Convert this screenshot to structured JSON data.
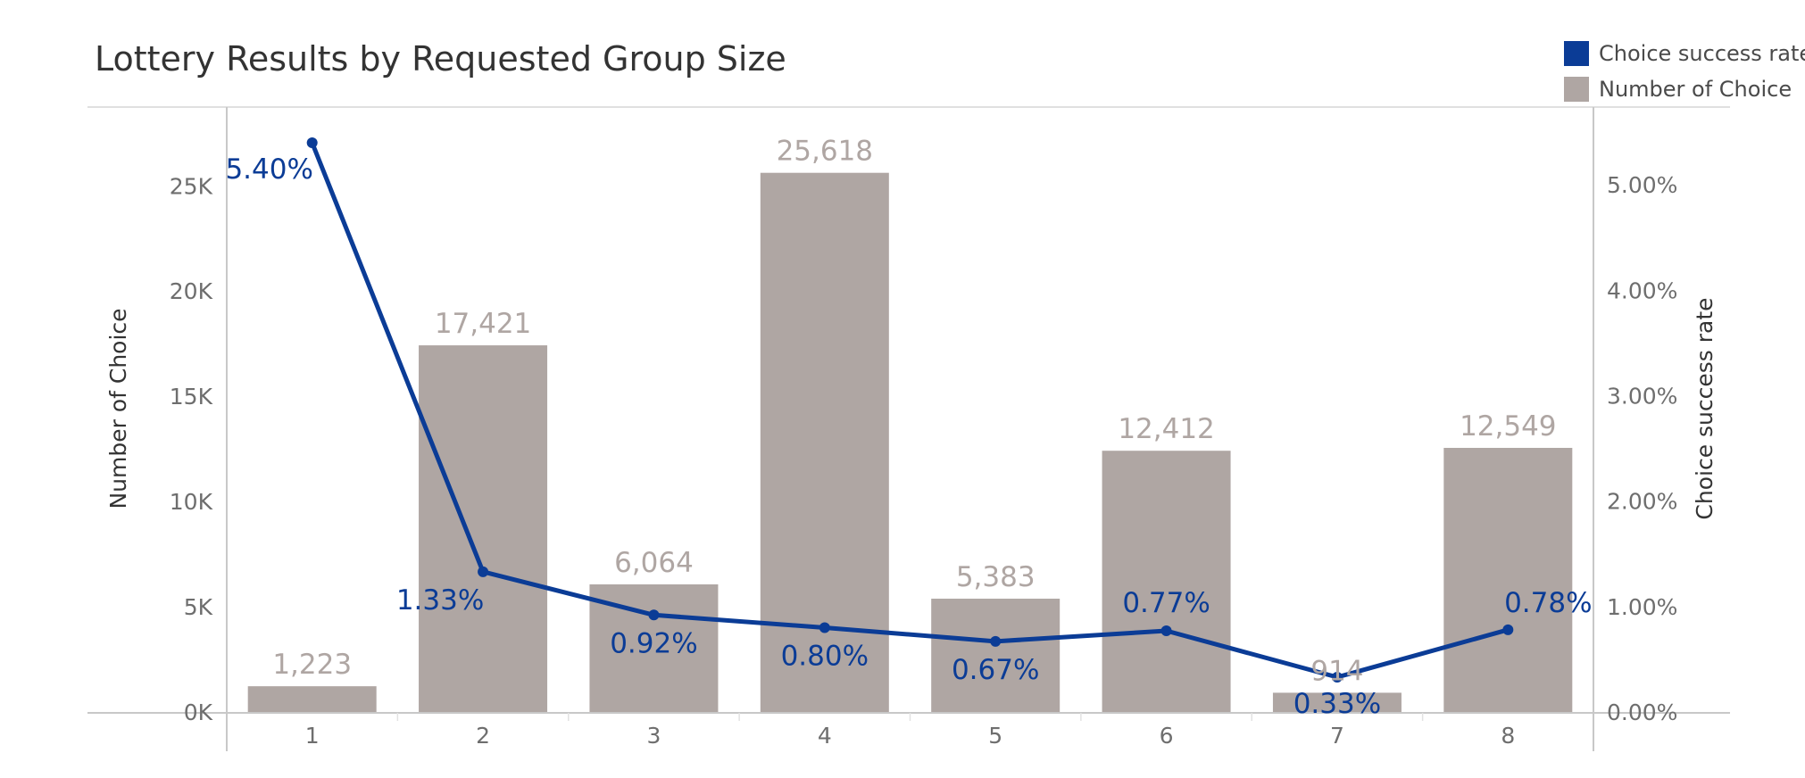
{
  "chart_data": {
    "type": "bar",
    "title": "Lottery Results by Requested Group Size",
    "categories": [
      "1",
      "2",
      "3",
      "4",
      "5",
      "6",
      "7",
      "8"
    ],
    "series": [
      {
        "name": "Number of Choice",
        "type": "bar",
        "axis": "left",
        "color": "#AFA6A3",
        "values": [
          1223,
          17421,
          6064,
          25618,
          5383,
          12412,
          914,
          12549
        ],
        "labels": [
          "1,223",
          "17,421",
          "6,064",
          "25,618",
          "5,383",
          "12,412",
          "914",
          "12,549"
        ]
      },
      {
        "name": "Choice success rate",
        "type": "line",
        "axis": "right",
        "color": "#0B3C96",
        "values": [
          5.4,
          1.33,
          0.92,
          0.8,
          0.67,
          0.77,
          0.33,
          0.78
        ],
        "labels": [
          "5.40%",
          "1.33%",
          "0.92%",
          "0.80%",
          "0.67%",
          "0.77%",
          "0.33%",
          "0.78%"
        ]
      }
    ],
    "ylabel": "Number of Choice",
    "y2label": "Choice success rate",
    "xlabel": "",
    "ylim": [
      0,
      28700
    ],
    "y2lim": [
      0,
      5.73
    ],
    "yticks": [
      0,
      5000,
      10000,
      15000,
      20000,
      25000
    ],
    "ytick_labels": [
      "0K",
      "5K",
      "10K",
      "15K",
      "20K",
      "25K"
    ],
    "y2ticks": [
      0,
      1,
      2,
      3,
      4,
      5
    ],
    "y2tick_labels": [
      "0.00%",
      "1.00%",
      "2.00%",
      "3.00%",
      "4.00%",
      "5.00%"
    ],
    "legend": [
      "Choice success rate",
      "Number of Choice"
    ],
    "legend_position": "top-right",
    "grid": false
  }
}
